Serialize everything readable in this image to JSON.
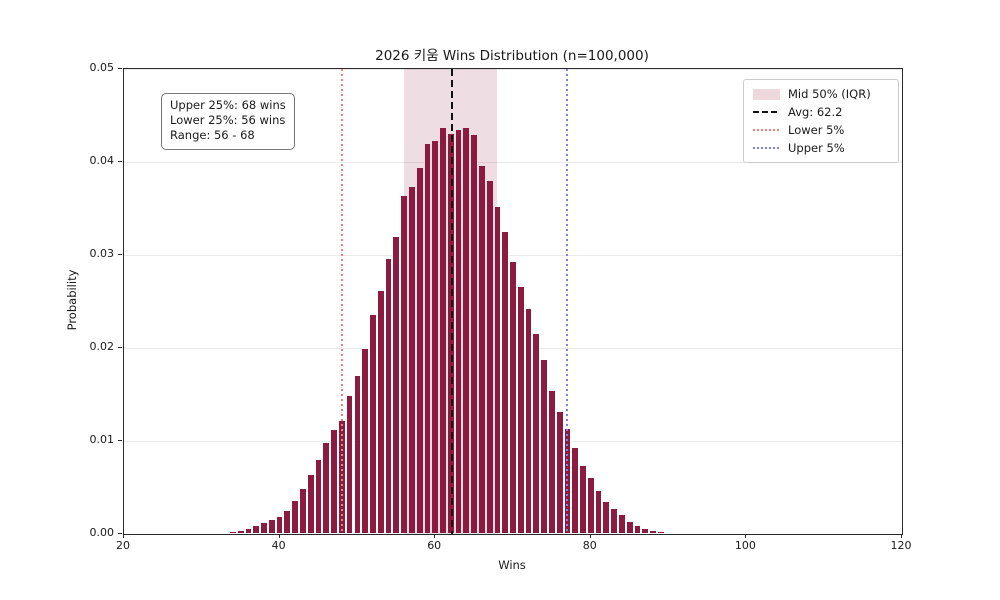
{
  "title": "2026 키움 Wins Distribution (n=100,000)",
  "axes": {
    "xlabel": "Wins",
    "ylabel": "Probability",
    "x_tick_labels": [
      "20",
      "40",
      "60",
      "80",
      "100",
      "120"
    ],
    "y_tick_labels": [
      "0.00",
      "0.01",
      "0.02",
      "0.03",
      "0.04",
      "0.05"
    ],
    "x_tick_values": [
      20,
      40,
      60,
      80,
      100,
      120
    ],
    "y_tick_values": [
      0,
      0.01,
      0.02,
      0.03,
      0.04,
      0.05
    ]
  },
  "annotation_box": {
    "lines": [
      "Upper 25%: 68 wins",
      "Lower 25%: 56 wins",
      "Range: 56 - 68"
    ]
  },
  "legend": {
    "items": [
      {
        "label": "Mid 50% (IQR)",
        "marker": "patch"
      },
      {
        "label": "Avg: 62.2",
        "marker": "dashed-line"
      },
      {
        "label": "Lower 5%",
        "marker": "dotted-line-red"
      },
      {
        "label": "Upper 5%",
        "marker": "dotted-line-blue"
      }
    ],
    "position": "upper right"
  },
  "chart_data": {
    "type": "bar",
    "subtype": "histogram",
    "title": "2026 키움 Wins Distribution (n=100,000)",
    "xlabel": "Wins",
    "ylabel": "Probability",
    "xlim": [
      20,
      120
    ],
    "ylim": [
      0,
      0.05
    ],
    "grid": "horizontal",
    "bin_width": 1,
    "bin_centers": [
      33,
      34,
      35,
      36,
      37,
      38,
      39,
      40,
      41,
      42,
      43,
      44,
      45,
      46,
      47,
      48,
      49,
      50,
      51,
      52,
      53,
      54,
      55,
      56,
      57,
      58,
      59,
      60,
      61,
      62,
      63,
      64,
      65,
      66,
      67,
      68,
      69,
      70,
      71,
      72,
      73,
      74,
      75,
      76,
      77,
      78,
      79,
      80,
      81,
      82,
      83,
      84,
      85,
      86,
      87,
      88,
      89,
      90,
      91,
      92
    ],
    "values": [
      0.00015,
      0.0003,
      0.0004,
      0.0007,
      0.001,
      0.0013,
      0.0016,
      0.0019,
      0.0026,
      0.0037,
      0.0049,
      0.0064,
      0.0081,
      0.0099,
      0.0113,
      0.0123,
      0.015,
      0.0171,
      0.02,
      0.0237,
      0.0262,
      0.0297,
      0.032,
      0.0364,
      0.0374,
      0.0395,
      0.042,
      0.0424,
      0.0438,
      0.0431,
      0.0435,
      0.0438,
      0.043,
      0.0397,
      0.0381,
      0.0353,
      0.0326,
      0.0294,
      0.0267,
      0.0243,
      0.0216,
      0.0188,
      0.0155,
      0.0132,
      0.0114,
      0.0094,
      0.0074,
      0.0061,
      0.0047,
      0.0035,
      0.0028,
      0.0021,
      0.0014,
      0.001,
      0.0007,
      0.0004,
      0.0003,
      0.0002,
      0.00018,
      0.00015
    ],
    "markers": {
      "avg": 62.2,
      "lower_5pct": 48,
      "upper_5pct": 77,
      "iqr": [
        56,
        68
      ]
    }
  },
  "colors": {
    "bar": "#8C1B40",
    "bar_edge": "#FFFFFF",
    "iqr_shade": "rgba(140,27,64,0.15)",
    "iqr_shade_legend": "#EDD8DE",
    "avg_line": "#111111",
    "lower_line": "#F08080",
    "upper_line": "#8080E8",
    "grid": "#E9E9E9",
    "spine": "#2B2B2B",
    "text": "#1A1A1A"
  }
}
